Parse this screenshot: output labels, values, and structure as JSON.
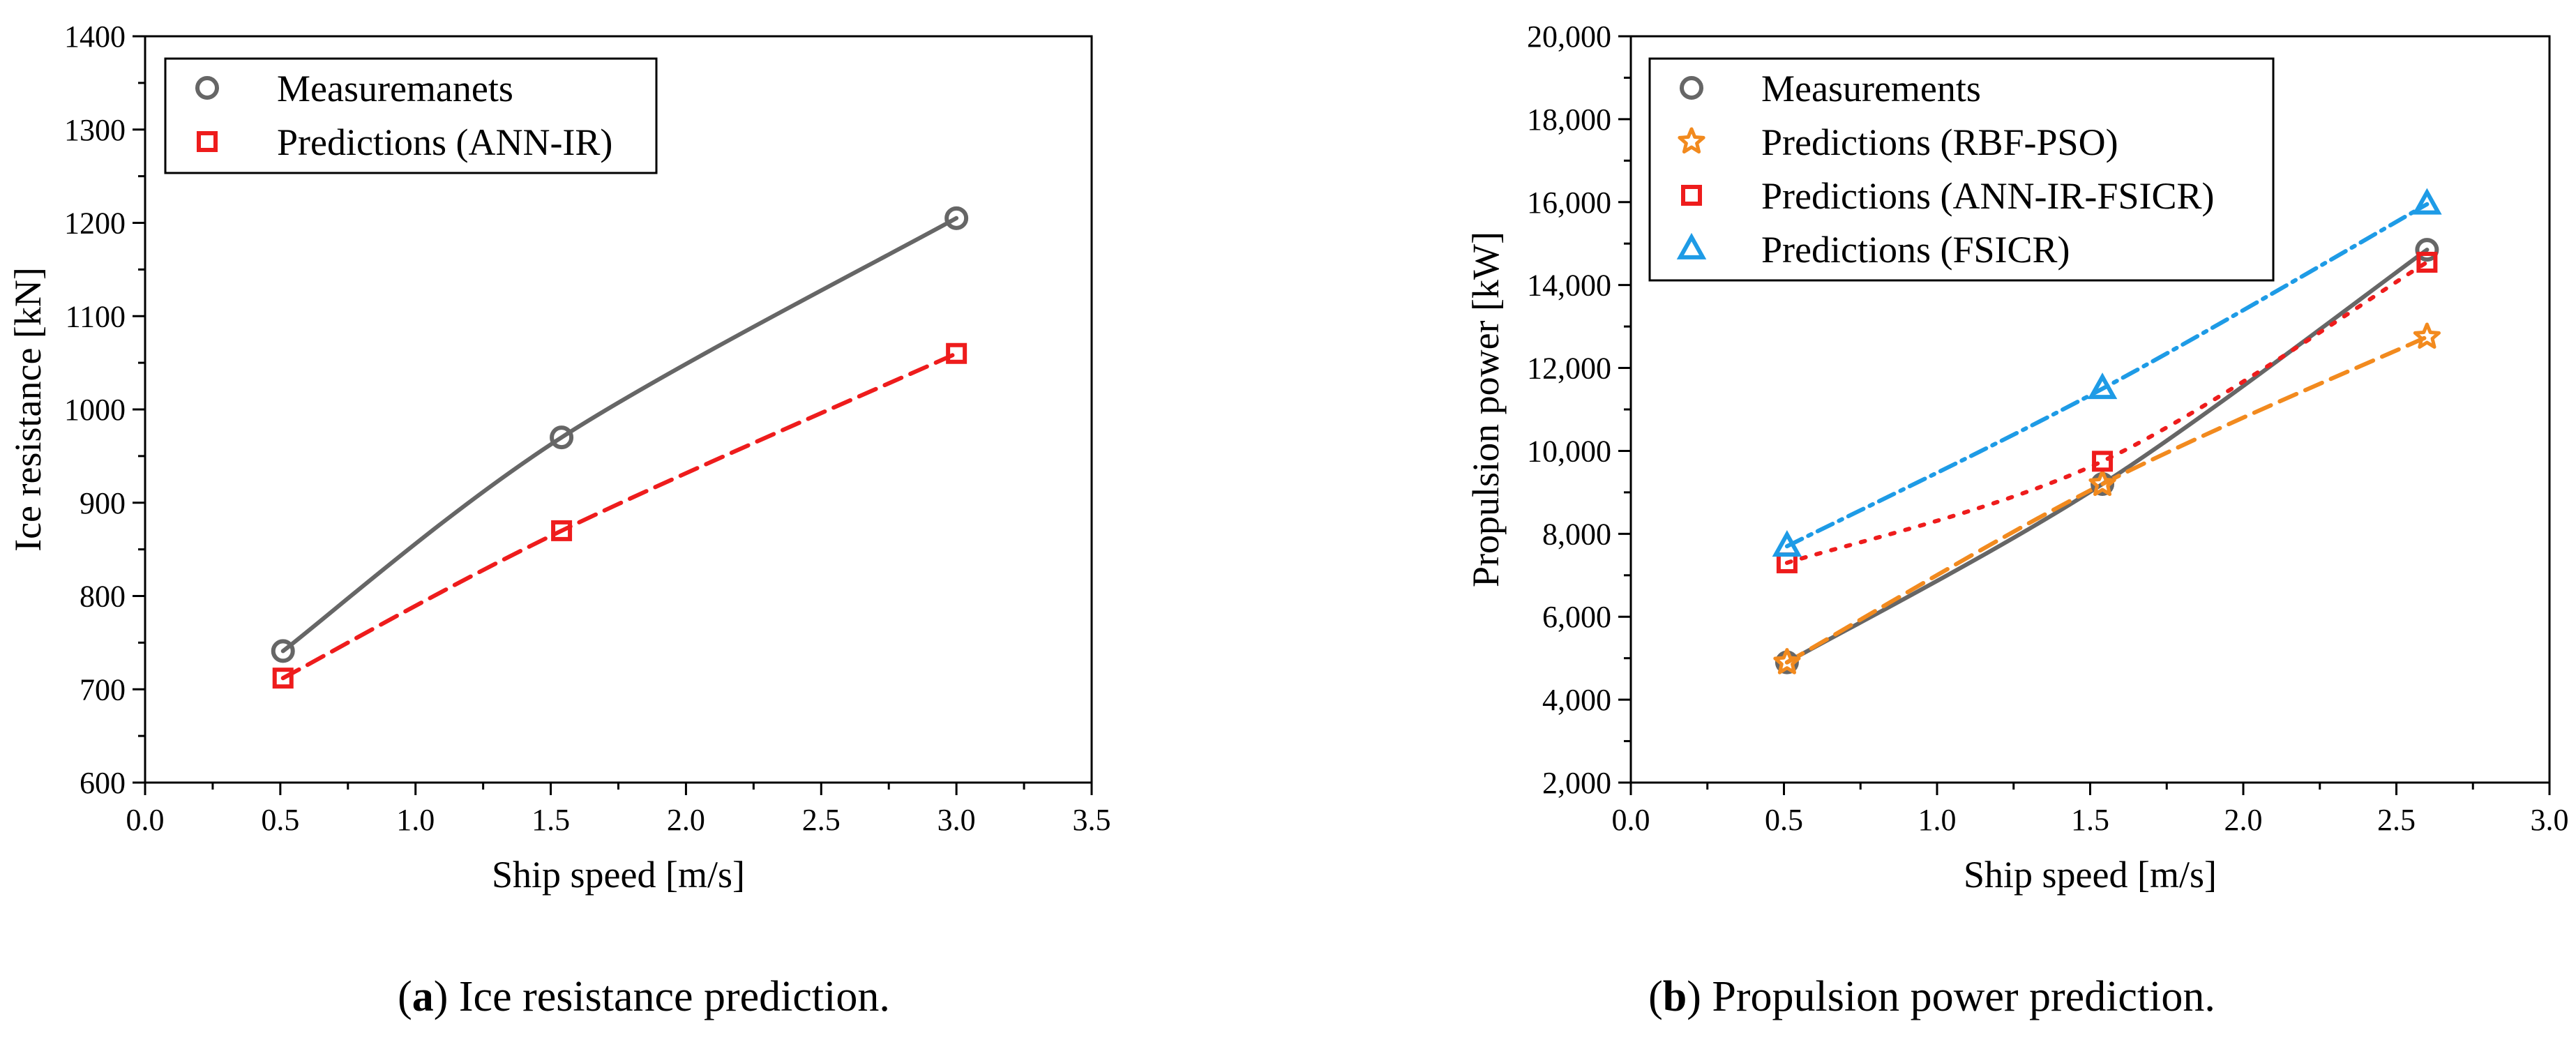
{
  "chart_data": [
    {
      "type": "line",
      "panel_label": "a",
      "caption": "Ice resistance prediction.",
      "xlabel": "Ship speed [m/s]",
      "ylabel": "Ice resistance [kN]",
      "xlim": [
        0,
        3.5
      ],
      "ylim": [
        600,
        1400
      ],
      "xticks": [
        0.0,
        0.5,
        1.0,
        1.5,
        2.0,
        2.5,
        3.0,
        3.5
      ],
      "xtick_labels": [
        "0.0",
        "0.5",
        "1.0",
        "1.5",
        "2.0",
        "2.5",
        "3.0",
        "3.5"
      ],
      "yticks": [
        600,
        700,
        800,
        900,
        1000,
        1100,
        1200,
        1300,
        1400
      ],
      "ytick_labels": [
        "600",
        "700",
        "800",
        "900",
        "1000",
        "1100",
        "1200",
        "1300",
        "1400"
      ],
      "grid": false,
      "legend_position": "top-left",
      "series": [
        {
          "name": "Measuremanets",
          "marker": "circle",
          "line": "solid",
          "color": "#666666",
          "x": [
            0.51,
            1.54,
            3.0
          ],
          "y": [
            741,
            970,
            1205
          ]
        },
        {
          "name": "Predictions (ANN-IR)",
          "marker": "square",
          "line": "dashed",
          "color": "#ee1c1c",
          "x": [
            0.51,
            1.54,
            3.0
          ],
          "y": [
            712,
            870,
            1060
          ]
        }
      ]
    },
    {
      "type": "line",
      "panel_label": "b",
      "caption": "Propulsion power prediction.",
      "xlabel": "Ship speed [m/s]",
      "ylabel": "Propulsion power [kW]",
      "xlim": [
        0,
        3.0
      ],
      "ylim": [
        2000,
        20000
      ],
      "xticks": [
        0.0,
        0.5,
        1.0,
        1.5,
        2.0,
        2.5,
        3.0
      ],
      "xtick_labels": [
        "0.0",
        "0.5",
        "1.0",
        "1.5",
        "2.0",
        "2.5",
        "3.0"
      ],
      "yticks": [
        2000,
        4000,
        6000,
        8000,
        10000,
        12000,
        14000,
        16000,
        18000,
        20000
      ],
      "ytick_labels": [
        "2,000",
        "4,000",
        "6,000",
        "8,000",
        "10,000",
        "12,000",
        "14,000",
        "16,000",
        "18,000",
        "20,000"
      ],
      "grid": false,
      "legend_position": "top-left",
      "series": [
        {
          "name": "Measurements",
          "marker": "circle",
          "line": "solid",
          "color": "#666666",
          "x": [
            0.51,
            1.54,
            2.6
          ],
          "y": [
            4900,
            9200,
            14850
          ]
        },
        {
          "name": "Predictions (RBF-PSO)",
          "marker": "star",
          "line": "dashed",
          "color": "#f28a1e",
          "x": [
            0.51,
            1.54,
            2.6
          ],
          "y": [
            4900,
            9200,
            12750
          ]
        },
        {
          "name": "Predictions (ANN-IR-FSICR)",
          "marker": "square",
          "line": "dotted",
          "color": "#ee1c1c",
          "x": [
            0.51,
            1.54,
            2.6
          ],
          "y": [
            7300,
            9750,
            14550
          ]
        },
        {
          "name": "Predictions (FSICR)",
          "marker": "triangle",
          "line": "dashdot",
          "color": "#1e9be6",
          "x": [
            0.51,
            1.54,
            2.6
          ],
          "y": [
            7700,
            11500,
            15950
          ]
        }
      ]
    }
  ]
}
